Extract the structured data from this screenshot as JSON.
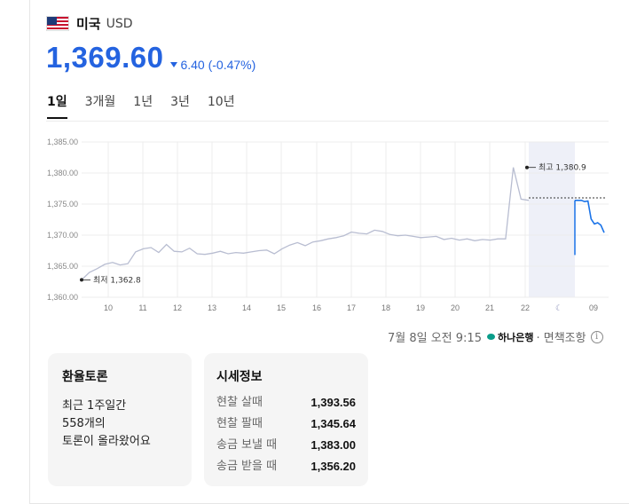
{
  "header": {
    "country": "미국",
    "currency": "USD"
  },
  "price": {
    "value": "1,369.60",
    "change": "6.40 (-0.47%)",
    "direction": "down",
    "color": "#2463e0"
  },
  "tabs": [
    {
      "label": "1일",
      "active": true
    },
    {
      "label": "3개월",
      "active": false
    },
    {
      "label": "1년",
      "active": false
    },
    {
      "label": "3년",
      "active": false
    },
    {
      "label": "10년",
      "active": false
    }
  ],
  "chart_data": {
    "type": "line",
    "y_ticks": [
      "1,385.00",
      "1,380.00",
      "1,375.00",
      "1,370.00",
      "1,365.00",
      "1,360.00"
    ],
    "ylim": [
      1360,
      1385
    ],
    "x_ticks": [
      "10",
      "11",
      "12",
      "13",
      "14",
      "15",
      "16",
      "17",
      "18",
      "19",
      "20",
      "21",
      "22",
      "☾",
      "09"
    ],
    "low_label": "최저 1,362.8",
    "high_label": "최고 1,380.9",
    "low": 1362.8,
    "high": 1380.9,
    "reference": 1376.0,
    "series": [
      {
        "values": [
          1362.8,
          1364.0,
          1364.6,
          1365.3,
          1365.6,
          1365.2,
          1365.4,
          1367.3,
          1367.8,
          1368.0,
          1367.2,
          1368.5,
          1367.4,
          1367.3,
          1367.9,
          1367.0,
          1366.9,
          1367.1,
          1367.4,
          1367.0,
          1367.2,
          1367.1,
          1367.3,
          1367.5,
          1367.6,
          1367.0,
          1367.8,
          1368.4,
          1368.8,
          1368.3,
          1368.9,
          1369.1,
          1369.4,
          1369.6,
          1369.9,
          1370.5,
          1370.3,
          1370.2,
          1370.8,
          1370.6,
          1370.1,
          1369.9,
          1370.0,
          1369.8,
          1369.6,
          1369.7,
          1369.8,
          1369.3,
          1369.5,
          1369.2,
          1369.4,
          1369.1,
          1369.3,
          1369.2,
          1369.4,
          1369.4,
          1380.9,
          1375.8,
          1375.6
        ]
      },
      {
        "values": [
          1375.6,
          1375.6,
          1375.6,
          1375.4,
          1375.5,
          1372.6,
          1371.8,
          1372.0,
          1371.6,
          1370.4
        ]
      }
    ]
  },
  "timestamp": {
    "text": "7월 8일 오전 9:15",
    "bank": "하나은행",
    "suffix": "· 면책조항"
  },
  "forum": {
    "title": "환율토론",
    "line1": "최근 1주일간",
    "count": "558",
    "count_suffix": "개의",
    "line3": "토론이 올라왔어요"
  },
  "market": {
    "title": "시세정보",
    "rows": [
      {
        "label": "현찰 살때",
        "value": "1,393.56"
      },
      {
        "label": "현찰 팔때",
        "value": "1,345.64"
      },
      {
        "label": "송금 보낼 때",
        "value": "1,383.00"
      },
      {
        "label": "송금 받을 때",
        "value": "1,356.20"
      }
    ]
  },
  "colors": {
    "accent": "#2463e0",
    "history_line": "#b8bdd1",
    "live_line": "#1a73e8",
    "highlight": "#eef0f8"
  }
}
